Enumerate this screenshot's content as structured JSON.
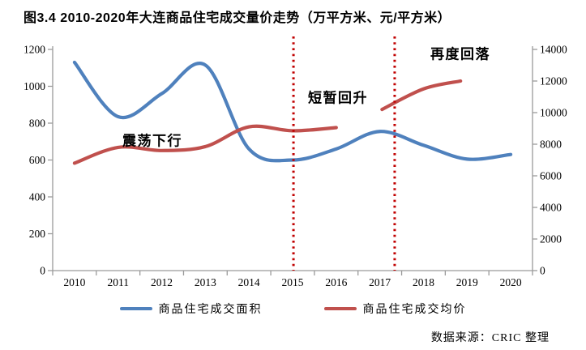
{
  "chart_data": {
    "type": "line",
    "title": "图3.4  2010-2020年大连商品住宅成交量价走势（万平方米、元/平方米）",
    "source": "数据来源：CRIC 整理",
    "grid": false,
    "legend_position": "bottom",
    "x_categories": [
      2010,
      2011,
      2012,
      2013,
      2014,
      2015,
      2016,
      2017,
      2018,
      2019,
      2020
    ],
    "left_axis": {
      "units": "万平方米",
      "min": 0,
      "max": 1200,
      "tick_step": 200,
      "ticks": [
        0,
        200,
        400,
        600,
        800,
        1000,
        1200
      ],
      "applies_to": "商品住宅成交面积"
    },
    "right_axis": {
      "units": "元/平方米",
      "min": 0,
      "max": 14000,
      "tick_step": 2000,
      "ticks": [
        0,
        2000,
        4000,
        6000,
        8000,
        10000,
        12000,
        14000
      ],
      "applies_to": "商品住宅成交均价"
    },
    "series": [
      {
        "name": "商品住宅成交面积",
        "axis": "left",
        "color": "#4F81BD",
        "x": [
          2010,
          2011,
          2012,
          2013,
          2014,
          2015,
          2016,
          2017,
          2018,
          2019,
          2020
        ],
        "values": [
          1130,
          835,
          960,
          1115,
          660,
          600,
          660,
          755,
          680,
          605,
          630
        ]
      },
      {
        "name": "商品住宅成交均价",
        "axis": "right",
        "color": "#C0504D",
        "segments": [
          {
            "x": [
              2010,
              2011,
              2012,
              2013,
              2014,
              2015,
              2016
            ],
            "values": [
              6800,
              7800,
              7600,
              7850,
              9100,
              8850,
              9050
            ]
          },
          {
            "x": [
              2017.05,
              2018,
              2018.85
            ],
            "values": [
              10200,
              11500,
              12000
            ]
          }
        ]
      }
    ],
    "vlines": [
      {
        "at_year": 2015.02,
        "color": "#C00000",
        "style": "dotted"
      },
      {
        "at_year": 2017.34,
        "color": "#C00000",
        "style": "dotted"
      }
    ],
    "annotations": [
      {
        "text": "震荡下行",
        "x": 188,
        "y": 172
      },
      {
        "text": "短暂回升",
        "x": 417,
        "y": 119
      },
      {
        "text": "再度回落",
        "x": 568,
        "y": 65
      }
    ]
  }
}
